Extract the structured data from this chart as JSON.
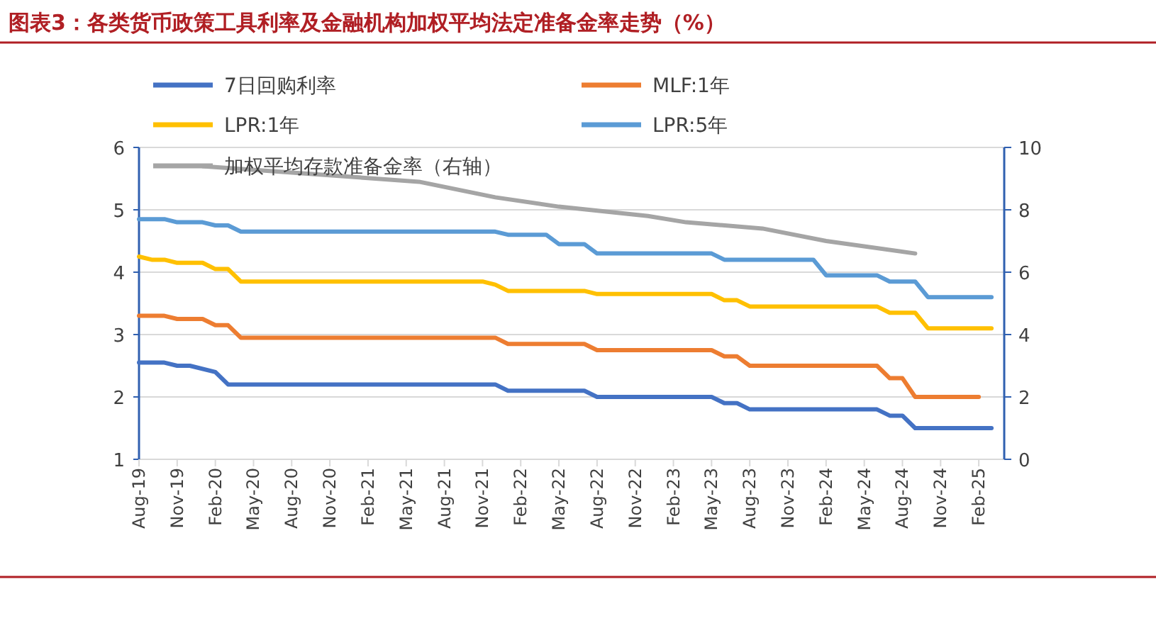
{
  "chart_data": {
    "type": "line",
    "title": "图表3：各类货币政策工具利率及金融机构加权平均法定准备金率走势（%）",
    "xlim": [
      "2019-08",
      "2025-04"
    ],
    "xticks": [
      {
        "value": "2019-08",
        "label": "Aug-19"
      },
      {
        "value": "2019-11",
        "label": "Nov-19"
      },
      {
        "value": "2020-02",
        "label": "Feb-20"
      },
      {
        "value": "2020-05",
        "label": "May-20"
      },
      {
        "value": "2020-08",
        "label": "Aug-20"
      },
      {
        "value": "2020-11",
        "label": "Nov-20"
      },
      {
        "value": "2021-02",
        "label": "Feb-21"
      },
      {
        "value": "2021-05",
        "label": "May-21"
      },
      {
        "value": "2021-08",
        "label": "Aug-21"
      },
      {
        "value": "2021-11",
        "label": "Nov-21"
      },
      {
        "value": "2022-02",
        "label": "Feb-22"
      },
      {
        "value": "2022-05",
        "label": "May-22"
      },
      {
        "value": "2022-08",
        "label": "Aug-22"
      },
      {
        "value": "2022-11",
        "label": "Nov-22"
      },
      {
        "value": "2023-02",
        "label": "Feb-23"
      },
      {
        "value": "2023-05",
        "label": "May-23"
      },
      {
        "value": "2023-08",
        "label": "Aug-23"
      },
      {
        "value": "2023-11",
        "label": "Nov-23"
      },
      {
        "value": "2024-02",
        "label": "Feb-24"
      },
      {
        "value": "2024-05",
        "label": "May-24"
      },
      {
        "value": "2024-08",
        "label": "Aug-24"
      },
      {
        "value": "2024-11",
        "label": "Nov-24"
      },
      {
        "value": "2025-02",
        "label": "Feb-25"
      }
    ],
    "ylim": [
      1,
      6
    ],
    "yticks": [
      1,
      2,
      3,
      4,
      5,
      6
    ],
    "y2lim": [
      0,
      10
    ],
    "y2ticks": [
      0,
      2,
      4,
      6,
      8,
      10
    ],
    "grid": "y",
    "legend": "top",
    "line_style": "solid",
    "marker": "none",
    "series": [
      {
        "name": "7日回购利率",
        "color": "#4472c4",
        "x": [
          "2019-08",
          "2019-10",
          "2019-11",
          "2019-12",
          "2020-02",
          "2020-03",
          "2021-12",
          "2022-01",
          "2022-07",
          "2022-08",
          "2023-05",
          "2023-06",
          "2023-07",
          "2023-08",
          "2024-06",
          "2024-07",
          "2024-08",
          "2024-09",
          "2025-03"
        ],
        "values": [
          2.55,
          2.55,
          2.5,
          2.5,
          2.4,
          2.2,
          2.2,
          2.1,
          2.1,
          2.0,
          2.0,
          1.9,
          1.9,
          1.8,
          1.8,
          1.7,
          1.7,
          1.5,
          1.5
        ]
      },
      {
        "name": "MLF:1年",
        "color": "#ed7d31",
        "x": [
          "2019-08",
          "2019-10",
          "2019-11",
          "2020-01",
          "2020-02",
          "2020-03",
          "2020-04",
          "2021-12",
          "2022-01",
          "2022-07",
          "2022-08",
          "2023-05",
          "2023-06",
          "2023-07",
          "2023-08",
          "2024-06",
          "2024-07",
          "2024-08",
          "2024-09",
          "2025-02"
        ],
        "values": [
          3.3,
          3.3,
          3.25,
          3.25,
          3.15,
          3.15,
          2.95,
          2.95,
          2.85,
          2.85,
          2.75,
          2.75,
          2.65,
          2.65,
          2.5,
          2.5,
          2.3,
          2.3,
          2.0,
          2.0
        ]
      },
      {
        "name": "LPR:1年",
        "color": "#ffc000",
        "x": [
          "2019-08",
          "2019-09",
          "2019-10",
          "2019-11",
          "2020-01",
          "2020-02",
          "2020-03",
          "2020-04",
          "2021-11",
          "2021-12",
          "2022-01",
          "2022-07",
          "2022-08",
          "2023-05",
          "2023-06",
          "2023-07",
          "2023-08",
          "2024-06",
          "2024-07",
          "2024-09",
          "2024-10",
          "2025-03"
        ],
        "values": [
          4.25,
          4.2,
          4.2,
          4.15,
          4.15,
          4.05,
          4.05,
          3.85,
          3.85,
          3.8,
          3.7,
          3.7,
          3.65,
          3.65,
          3.55,
          3.55,
          3.45,
          3.45,
          3.35,
          3.35,
          3.1,
          3.1
        ]
      },
      {
        "name": "LPR:5年",
        "color": "#5b9bd5",
        "x": [
          "2019-08",
          "2019-10",
          "2019-11",
          "2020-01",
          "2020-02",
          "2020-03",
          "2020-04",
          "2021-12",
          "2022-01",
          "2022-04",
          "2022-05",
          "2022-07",
          "2022-08",
          "2023-05",
          "2023-06",
          "2024-01",
          "2024-02",
          "2024-06",
          "2024-07",
          "2024-09",
          "2024-10",
          "2025-03"
        ],
        "values": [
          4.85,
          4.85,
          4.8,
          4.8,
          4.75,
          4.75,
          4.65,
          4.65,
          4.6,
          4.6,
          4.45,
          4.45,
          4.3,
          4.3,
          4.2,
          4.2,
          3.95,
          3.95,
          3.85,
          3.85,
          3.6,
          3.6
        ]
      },
      {
        "name": "加权平均存款准备金率（右轴）",
        "color": "#a5a5a5",
        "axis": "y2",
        "x": [
          "2020-01",
          "2021-06",
          "2021-12",
          "2022-05",
          "2022-12",
          "2023-03",
          "2023-09",
          "2024-02",
          "2024-09"
        ],
        "values": [
          9.4,
          8.9,
          8.4,
          8.1,
          7.8,
          7.6,
          7.4,
          7.0,
          6.6
        ]
      }
    ]
  }
}
